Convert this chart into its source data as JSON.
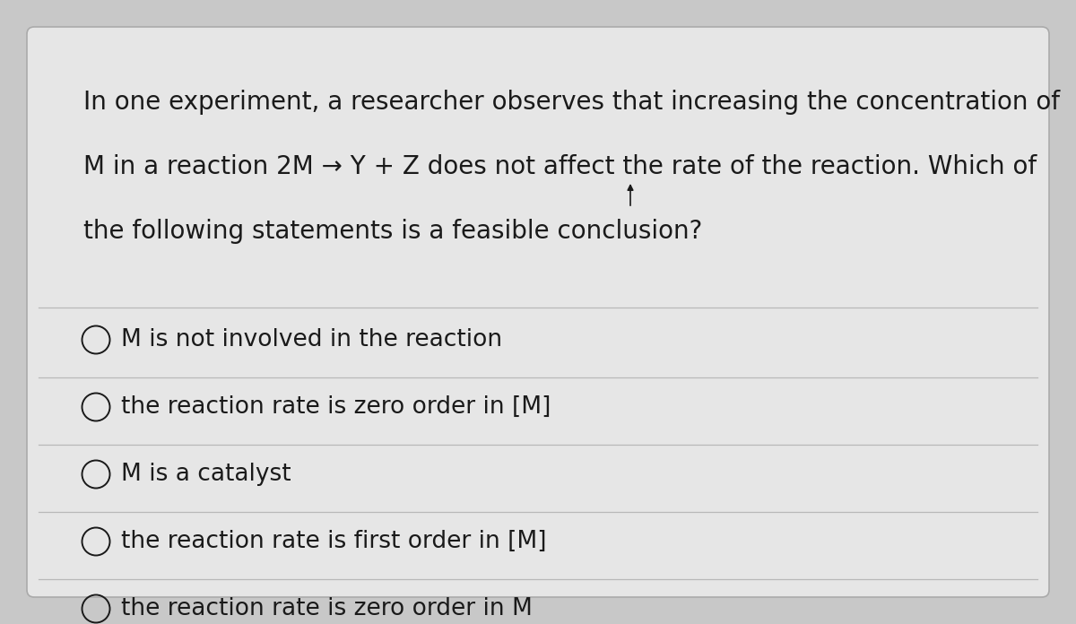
{
  "bg_color": "#c8c8c8",
  "card_color": "#e6e6e6",
  "text_color": "#1a1a1a",
  "line_color": "#b8b8b8",
  "question_lines": [
    "In one experiment, a researcher observes that increasing the concentration of",
    "M in a reaction 2M → Y + Z does not affect the rate of the reaction. Which of",
    "the following statements is a feasible conclusion?"
  ],
  "options": [
    "M is not involved in the reaction",
    "the reaction rate is zero order in [M]",
    "M is a catalyst",
    "the reaction rate is first order in [M]",
    "the reaction rate is zero order in M"
  ],
  "font_size_question": 20,
  "font_size_options": 19
}
